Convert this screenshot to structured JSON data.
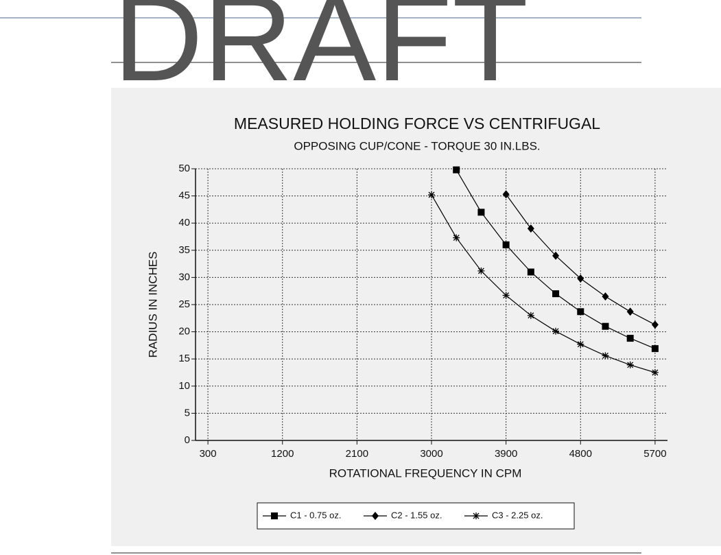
{
  "watermark": "DRAFT",
  "chart_data": {
    "type": "line",
    "title": "MEASURED HOLDING FORCE VS CENTRIFUGAL",
    "subtitle": "OPPOSING CUP/CONE - TORQUE 30 IN.LBS.",
    "x_label": "ROTATIONAL FREQUENCY IN CPM",
    "y_label": "RADIUS IN INCHES",
    "x": [
      3000,
      3300,
      3600,
      3900,
      4200,
      4500,
      4800,
      5100,
      5400,
      5700
    ],
    "series": [
      {
        "name": "C1 - 0.75 oz.",
        "color": "#000000",
        "marker": "square",
        "values": [
          null,
          49.8,
          42,
          36,
          31,
          27,
          23.7,
          21,
          18.8,
          16.9
        ]
      },
      {
        "name": "C2 - 1.55 oz.",
        "color": "#000000",
        "marker": "diamond",
        "values": [
          null,
          null,
          null,
          45.3,
          39,
          34,
          29.8,
          26.5,
          23.7,
          21.3
        ]
      },
      {
        "name": "C3 - 2.25 oz.",
        "color": "#000000",
        "marker": "star",
        "values": [
          45.2,
          37.3,
          31.2,
          26.7,
          23,
          20.1,
          17.7,
          15.6,
          13.9,
          12.5
        ]
      }
    ],
    "xlim": [
      150,
      5850
    ],
    "xticks": [
      300,
      1200,
      2100,
      3000,
      3900,
      4800,
      5700
    ],
    "ylim": [
      0,
      50
    ],
    "yticks": [
      0,
      5,
      10,
      15,
      20,
      25,
      30,
      35,
      40,
      45,
      50
    ],
    "grid": true,
    "legend": "bottom"
  }
}
